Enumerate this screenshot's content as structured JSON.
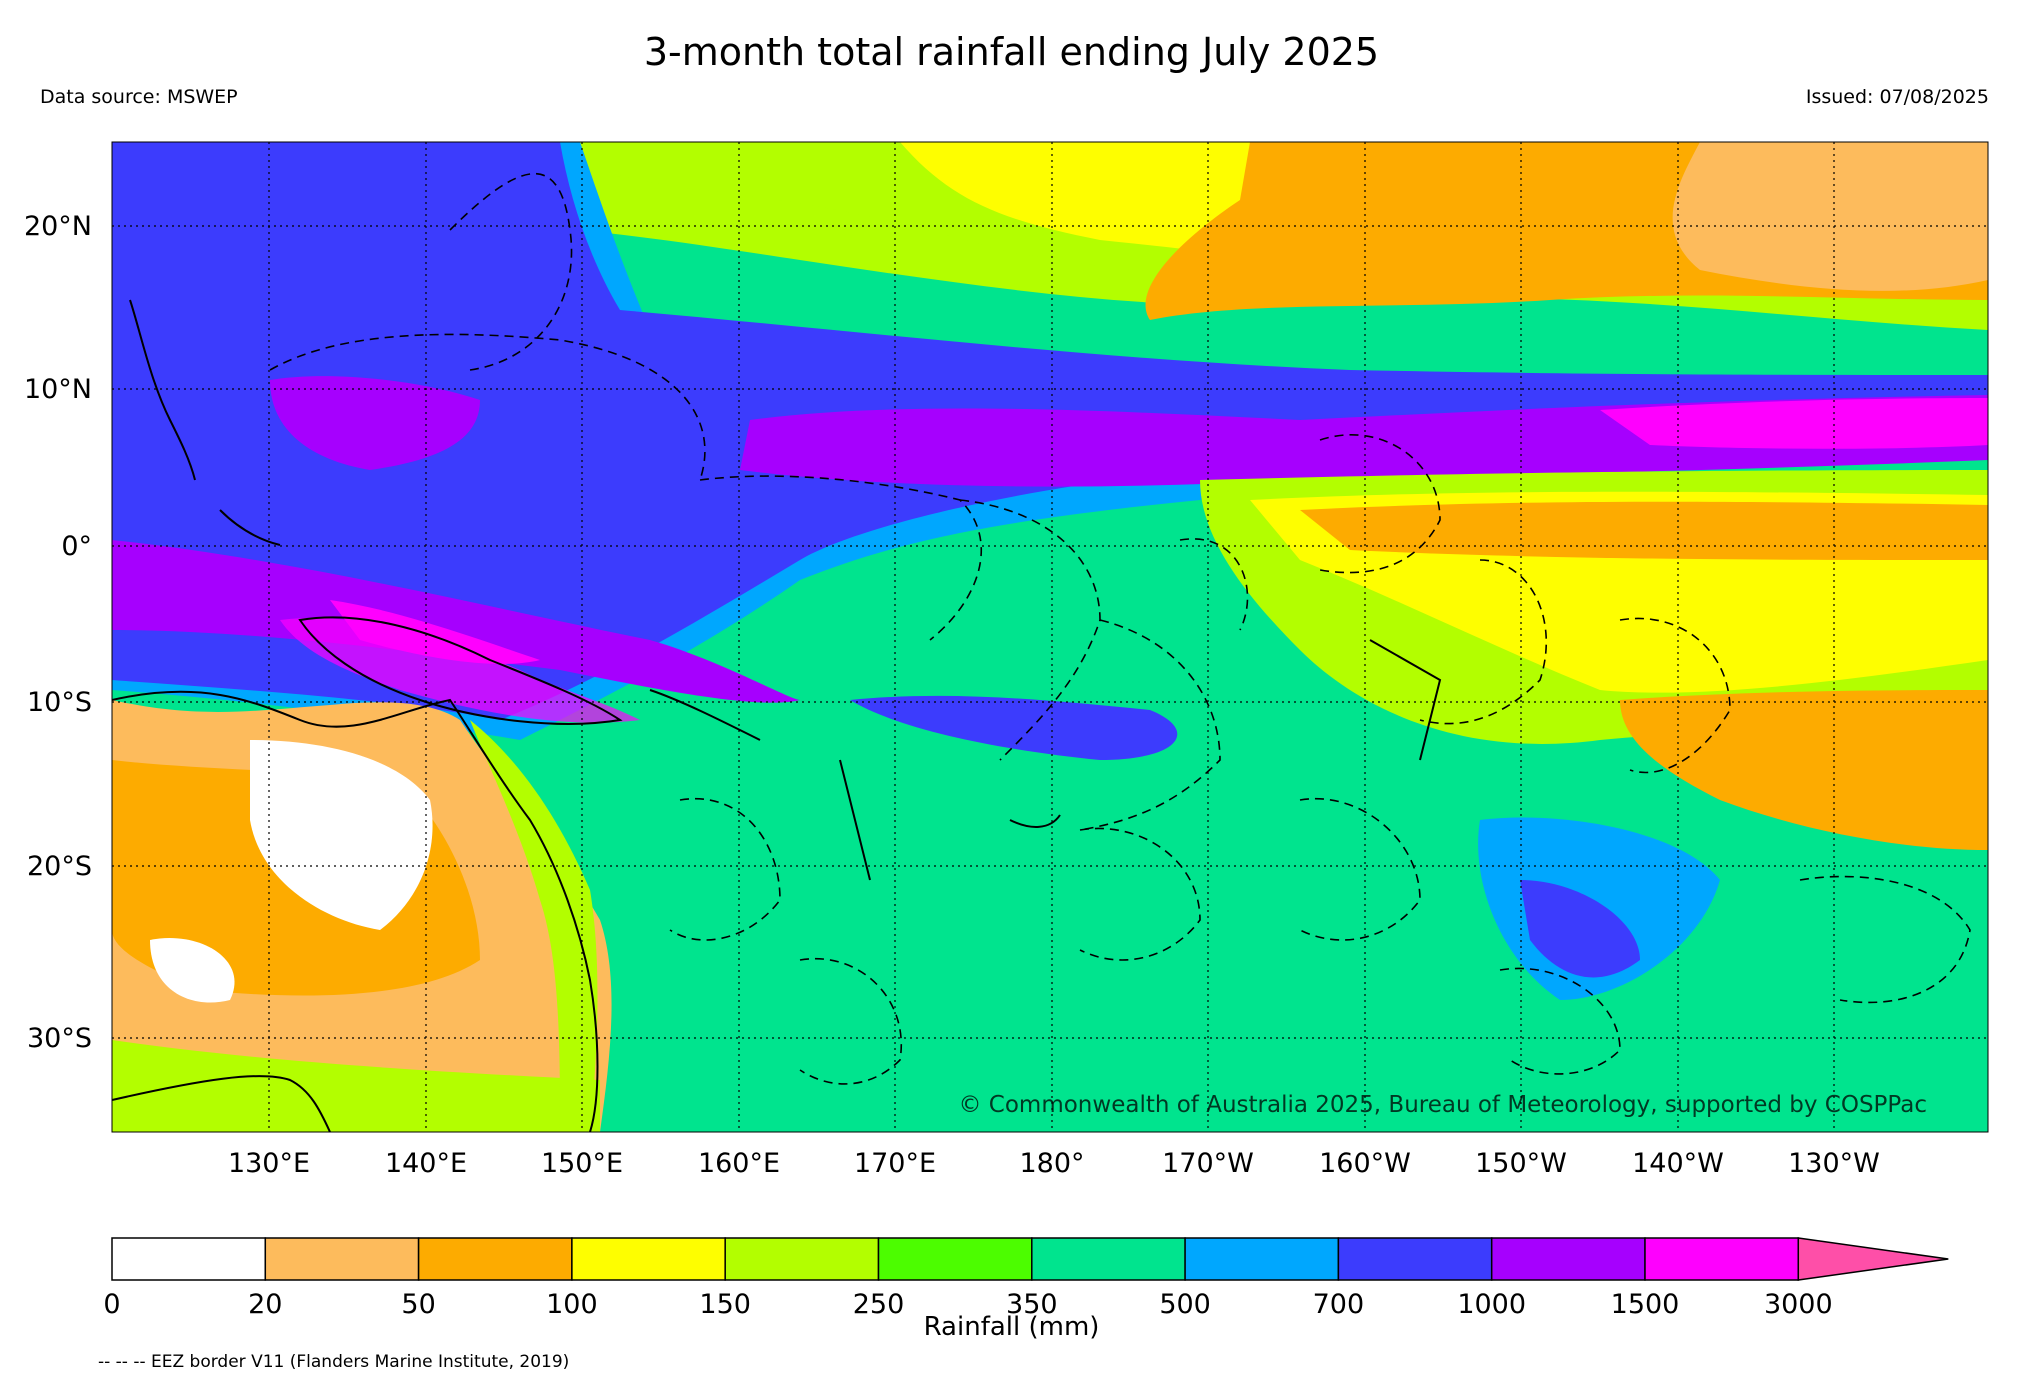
{
  "title": "3-month total rainfall ending July 2025",
  "source": "Data source: MSWEP",
  "issued": "Issued: 07/08/2025",
  "copyright": "© Commonwealth of Australia 2025, Bureau of Meteorology, supported by COSPPac",
  "footnote": "-- -- -- EEZ border V11 (Flanders Marine Institute, 2019)",
  "lat_labels": [
    "20°N",
    "10°N",
    "0°",
    "10°S",
    "20°S",
    "30°S"
  ],
  "lon_labels": [
    "130°E",
    "140°E",
    "150°E",
    "160°E",
    "170°E",
    "180°",
    "170°W",
    "160°W",
    "150°W",
    "140°W",
    "130°W"
  ],
  "colorbar": {
    "label": "Rainfall (mm)",
    "ticks": [
      "0",
      "20",
      "50",
      "100",
      "150",
      "250",
      "350",
      "500",
      "700",
      "1000",
      "1500",
      "3000"
    ],
    "colors": [
      "#ffffff",
      "#fdbb5c",
      "#fdab00",
      "#fefe00",
      "#b3fe00",
      "#4cfd00",
      "#00e48e",
      "#00a7fe",
      "#3c3cfd",
      "#a600fe",
      "#fe00fe",
      "#fe4fa8"
    ]
  }
}
